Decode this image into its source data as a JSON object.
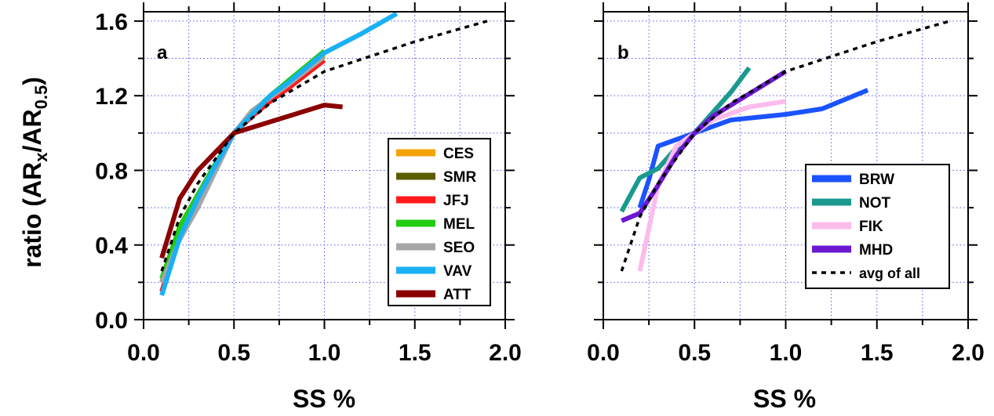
{
  "chart_data": [
    {
      "type": "line",
      "panel_label": "a",
      "xlabel": "SS %",
      "ylabel": "ratio (AR",
      "ylabel_sub1": "x",
      "ylabel_mid": "/AR",
      "ylabel_sub2": "0.5",
      "ylabel_end": ")",
      "xlim": [
        0.0,
        2.0
      ],
      "ylim": [
        0.0,
        1.65
      ],
      "xticks": [
        "0.0",
        "0.5",
        "1.0",
        "1.5",
        "2.0"
      ],
      "yticks": [
        "0.0",
        "0.4",
        "0.8",
        "1.2",
        "1.6"
      ],
      "grid": true,
      "legend_position": "bottom-right",
      "series": [
        {
          "name": "CES",
          "color": "#f5a300",
          "width": 6,
          "x": [
            0.1,
            0.2,
            0.3,
            0.4,
            0.5,
            0.6,
            0.7,
            0.8,
            1.0
          ],
          "y": [
            0.2,
            0.48,
            0.66,
            0.83,
            1.0,
            1.1,
            1.19,
            1.27,
            1.42
          ]
        },
        {
          "name": "SMR",
          "color": "#5c5c00",
          "width": 6,
          "x": [
            0.1,
            0.2,
            0.3,
            0.4,
            0.5,
            0.6,
            0.7,
            0.8,
            1.0
          ],
          "y": [
            0.2,
            0.46,
            0.64,
            0.82,
            1.0,
            1.1,
            1.18,
            1.27,
            1.43
          ]
        },
        {
          "name": "JFJ",
          "color": "#ff1a1a",
          "width": 6,
          "x": [
            0.1,
            0.2,
            0.3,
            0.4,
            0.5,
            0.6,
            0.7,
            0.8,
            1.0
          ],
          "y": [
            0.15,
            0.45,
            0.65,
            0.83,
            1.0,
            1.09,
            1.17,
            1.24,
            1.39
          ]
        },
        {
          "name": "MEL",
          "color": "#22cc11",
          "width": 6,
          "x": [
            0.1,
            0.2,
            0.3,
            0.4,
            0.5,
            0.6,
            0.7,
            0.8,
            1.0
          ],
          "y": [
            0.22,
            0.5,
            0.67,
            0.84,
            1.0,
            1.11,
            1.2,
            1.28,
            1.44
          ]
        },
        {
          "name": "SEO",
          "color": "#a6a6a6",
          "width": 6,
          "x": [
            0.1,
            0.2,
            0.3,
            0.4,
            0.5,
            0.6,
            0.7,
            0.8,
            1.0
          ],
          "y": [
            0.2,
            0.43,
            0.6,
            0.8,
            1.0,
            1.12,
            1.19,
            1.26,
            1.41
          ]
        },
        {
          "name": "VAV",
          "color": "#1ab0f5",
          "width": 6,
          "x": [
            0.1,
            0.2,
            0.3,
            0.4,
            0.5,
            0.6,
            0.7,
            0.8,
            1.0,
            1.2,
            1.4
          ],
          "y": [
            0.13,
            0.44,
            0.65,
            0.83,
            1.0,
            1.1,
            1.2,
            1.27,
            1.43,
            1.53,
            1.64
          ]
        },
        {
          "name": "ATT",
          "color": "#8b0000",
          "width": 6,
          "x": [
            0.1,
            0.2,
            0.3,
            0.5,
            0.7,
            1.0,
            1.1
          ],
          "y": [
            0.33,
            0.65,
            0.8,
            1.0,
            1.06,
            1.15,
            1.14
          ]
        },
        {
          "name": "",
          "color": "#000000",
          "width": 3.5,
          "dashed": true,
          "x": [
            0.1,
            0.2,
            0.3,
            0.5,
            0.7,
            1.0,
            1.5,
            1.9
          ],
          "y": [
            0.26,
            0.55,
            0.73,
            1.0,
            1.16,
            1.33,
            1.49,
            1.6
          ]
        }
      ]
    },
    {
      "type": "line",
      "panel_label": "b",
      "xlabel": "SS %",
      "xlim": [
        0.0,
        2.0
      ],
      "ylim": [
        0.0,
        1.65
      ],
      "xticks": [
        "0.0",
        "0.5",
        "1.0",
        "1.5",
        "2.0"
      ],
      "grid": true,
      "legend_position": "bottom-right",
      "series": [
        {
          "name": "BRW",
          "color": "#1a53ff",
          "width": 6,
          "x": [
            0.2,
            0.25,
            0.3,
            0.5,
            0.7,
            1.0,
            1.2,
            1.45
          ],
          "y": [
            0.6,
            0.75,
            0.93,
            1.0,
            1.07,
            1.1,
            1.13,
            1.23
          ]
        },
        {
          "name": "NOT",
          "color": "#1a9a8e",
          "width": 6,
          "x": [
            0.1,
            0.2,
            0.3,
            0.4,
            0.5,
            0.6,
            0.7,
            0.8
          ],
          "y": [
            0.58,
            0.76,
            0.81,
            0.92,
            1.0,
            1.11,
            1.22,
            1.35
          ]
        },
        {
          "name": "FIK",
          "color": "#fbbcec",
          "width": 6,
          "x": [
            0.2,
            0.3,
            0.4,
            0.5,
            0.6,
            0.8,
            1.0
          ],
          "y": [
            0.26,
            0.72,
            0.93,
            1.0,
            1.07,
            1.14,
            1.17
          ]
        },
        {
          "name": "MHD",
          "color": "#6b19d1",
          "width": 6,
          "x": [
            0.1,
            0.2,
            0.3,
            0.4,
            0.5,
            0.6,
            0.8,
            1.0
          ],
          "y": [
            0.53,
            0.57,
            0.72,
            0.88,
            1.0,
            1.09,
            1.21,
            1.33
          ]
        },
        {
          "name": "avg of all",
          "color": "#000000",
          "width": 3.5,
          "dashed": true,
          "x": [
            0.1,
            0.2,
            0.3,
            0.5,
            0.7,
            1.0,
            1.5,
            1.9
          ],
          "y": [
            0.26,
            0.55,
            0.73,
            1.0,
            1.16,
            1.33,
            1.49,
            1.6
          ]
        }
      ]
    }
  ]
}
